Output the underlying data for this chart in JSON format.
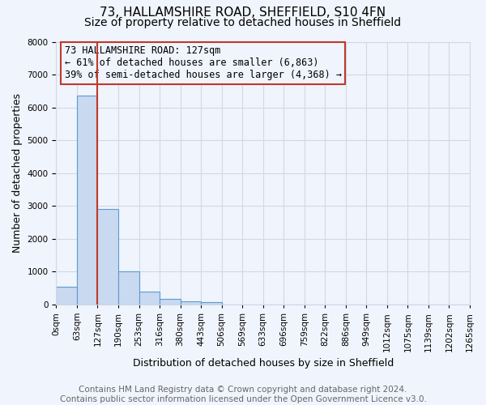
{
  "title": "73, HALLAMSHIRE ROAD, SHEFFIELD, S10 4FN",
  "subtitle": "Size of property relative to detached houses in Sheffield",
  "xlabel": "Distribution of detached houses by size in Sheffield",
  "ylabel": "Number of detached properties",
  "footer_line1": "Contains HM Land Registry data © Crown copyright and database right 2024.",
  "footer_line2": "Contains public sector information licensed under the Open Government Licence v3.0.",
  "annotation_line1": "73 HALLAMSHIRE ROAD: 127sqm",
  "annotation_line2": "← 61% of detached houses are smaller (6,863)",
  "annotation_line3": "39% of semi-detached houses are larger (4,368) →",
  "tick_labels": [
    "0sqm",
    "63sqm",
    "127sqm",
    "190sqm",
    "253sqm",
    "316sqm",
    "380sqm",
    "443sqm",
    "506sqm",
    "569sqm",
    "633sqm",
    "696sqm",
    "759sqm",
    "822sqm",
    "886sqm",
    "949sqm",
    "1012sqm",
    "1075sqm",
    "1139sqm",
    "1202sqm",
    "1265sqm"
  ],
  "bar_heights": [
    550,
    6350,
    2900,
    1000,
    380,
    170,
    100,
    60,
    0,
    0,
    0,
    0,
    0,
    0,
    0,
    0,
    0,
    0,
    0,
    0
  ],
  "n_bars": 20,
  "vline_bar_index": 2,
  "bar_color": "#c9d9ef",
  "bar_edge_color": "#5b9bd5",
  "vline_color": "#c0392b",
  "ylim": [
    0,
    8000
  ],
  "yticks": [
    0,
    1000,
    2000,
    3000,
    4000,
    5000,
    6000,
    7000,
    8000
  ],
  "grid_color": "#d0d8e8",
  "background_color": "#f0f4fc",
  "annotation_box_color": "#c0392b",
  "title_fontsize": 11,
  "subtitle_fontsize": 10,
  "tick_label_fontsize": 7.5,
  "axis_label_fontsize": 9,
  "annotation_fontsize": 8.5,
  "footer_fontsize": 7.5
}
